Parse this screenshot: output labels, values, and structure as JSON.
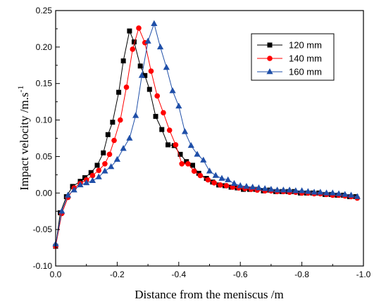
{
  "chart_data": {
    "type": "line",
    "title": "",
    "xlabel": "Distance from the meniscus /m",
    "ylabel_main": "Impact velocity /m.s",
    "ylabel_sup": "-1",
    "xlim": [
      0.0,
      -1.0
    ],
    "ylim": [
      -0.1,
      0.25
    ],
    "xticks": [
      0.0,
      -0.2,
      -0.4,
      -0.6,
      -0.8,
      -1.0
    ],
    "xtick_labels": [
      "0.0",
      "-0.2",
      "-0.4",
      "-0.6",
      "-0.8",
      "-1.0"
    ],
    "yticks": [
      -0.1,
      -0.05,
      0.0,
      0.05,
      0.1,
      0.15,
      0.2,
      0.25
    ],
    "ytick_labels": [
      "-0.10",
      "-0.05",
      "0.00",
      "0.05",
      "0.10",
      "0.15",
      "0.20",
      "0.25"
    ],
    "grid": false,
    "legend_position": "top-right",
    "series": [
      {
        "name": "120 mm",
        "marker": "square",
        "color": "#000000",
        "x": [
          0.0,
          -0.015,
          -0.035,
          -0.055,
          -0.08,
          -0.095,
          -0.115,
          -0.135,
          -0.155,
          -0.17,
          -0.185,
          -0.205,
          -0.22,
          -0.24,
          -0.255,
          -0.275,
          -0.29,
          -0.305,
          -0.325,
          -0.345,
          -0.365,
          -0.385,
          -0.405,
          -0.425,
          -0.445,
          -0.465,
          -0.49,
          -0.51,
          -0.53,
          -0.55,
          -0.57,
          -0.59,
          -0.61,
          -0.63,
          -0.65,
          -0.675,
          -0.695,
          -0.715,
          -0.735,
          -0.755,
          -0.775,
          -0.795,
          -0.815,
          -0.835,
          -0.855,
          -0.875,
          -0.895,
          -0.915,
          -0.935,
          -0.955,
          -0.975
        ],
        "y": [
          -0.073,
          -0.027,
          -0.005,
          0.009,
          0.016,
          0.021,
          0.028,
          0.038,
          0.055,
          0.08,
          0.097,
          0.138,
          0.181,
          0.222,
          0.207,
          0.174,
          0.161,
          0.142,
          0.105,
          0.087,
          0.066,
          0.065,
          0.053,
          0.043,
          0.038,
          0.027,
          0.02,
          0.015,
          0.011,
          0.01,
          0.008,
          0.007,
          0.005,
          0.005,
          0.005,
          0.003,
          0.004,
          0.002,
          0.002,
          0.002,
          0.002,
          0.0,
          0.0,
          0.0,
          0.0,
          -0.002,
          -0.002,
          -0.003,
          -0.003,
          -0.005,
          -0.005
        ]
      },
      {
        "name": "140 mm",
        "marker": "circle",
        "color": "#ff0000",
        "x": [
          0.0,
          -0.02,
          -0.04,
          -0.06,
          -0.08,
          -0.1,
          -0.12,
          -0.14,
          -0.16,
          -0.175,
          -0.19,
          -0.21,
          -0.23,
          -0.25,
          -0.27,
          -0.29,
          -0.31,
          -0.33,
          -0.35,
          -0.37,
          -0.39,
          -0.41,
          -0.43,
          -0.45,
          -0.47,
          -0.495,
          -0.515,
          -0.535,
          -0.555,
          -0.575,
          -0.595,
          -0.615,
          -0.635,
          -0.655,
          -0.68,
          -0.7,
          -0.72,
          -0.74,
          -0.76,
          -0.78,
          -0.8,
          -0.82,
          -0.84,
          -0.86,
          -0.88,
          -0.9,
          -0.92,
          -0.94,
          -0.96,
          -0.98
        ],
        "y": [
          -0.073,
          -0.028,
          -0.006,
          0.007,
          0.013,
          0.018,
          0.024,
          0.031,
          0.04,
          0.053,
          0.072,
          0.1,
          0.145,
          0.197,
          0.226,
          0.206,
          0.167,
          0.133,
          0.11,
          0.086,
          0.066,
          0.04,
          0.04,
          0.03,
          0.024,
          0.018,
          0.014,
          0.011,
          0.01,
          0.008,
          0.007,
          0.006,
          0.005,
          0.004,
          0.003,
          0.003,
          0.002,
          0.002,
          0.001,
          0.001,
          0.0,
          0.0,
          -0.001,
          -0.001,
          -0.002,
          -0.003,
          -0.003,
          -0.004,
          -0.005,
          -0.007
        ]
      },
      {
        "name": "160 mm",
        "marker": "triangle",
        "color": "#1f4fa8",
        "x": [
          0.0,
          -0.02,
          -0.04,
          -0.06,
          -0.08,
          -0.1,
          -0.12,
          -0.14,
          -0.16,
          -0.18,
          -0.2,
          -0.22,
          -0.24,
          -0.26,
          -0.28,
          -0.3,
          -0.32,
          -0.34,
          -0.36,
          -0.38,
          -0.4,
          -0.42,
          -0.44,
          -0.46,
          -0.48,
          -0.5,
          -0.52,
          -0.54,
          -0.56,
          -0.58,
          -0.6,
          -0.62,
          -0.64,
          -0.66,
          -0.68,
          -0.7,
          -0.72,
          -0.74,
          -0.76,
          -0.78,
          -0.8,
          -0.82,
          -0.84,
          -0.86,
          -0.88,
          -0.9,
          -0.92,
          -0.94,
          -0.96,
          -0.98
        ],
        "y": [
          -0.07,
          -0.025,
          -0.003,
          0.004,
          0.011,
          0.014,
          0.017,
          0.022,
          0.03,
          0.036,
          0.046,
          0.061,
          0.075,
          0.106,
          0.161,
          0.208,
          0.232,
          0.2,
          0.172,
          0.14,
          0.119,
          0.084,
          0.065,
          0.053,
          0.045,
          0.03,
          0.024,
          0.02,
          0.018,
          0.013,
          0.01,
          0.009,
          0.008,
          0.007,
          0.006,
          0.005,
          0.004,
          0.004,
          0.004,
          0.003,
          0.003,
          0.002,
          0.001,
          0.001,
          0.0,
          0.0,
          -0.001,
          -0.002,
          -0.003,
          -0.005
        ]
      }
    ]
  }
}
